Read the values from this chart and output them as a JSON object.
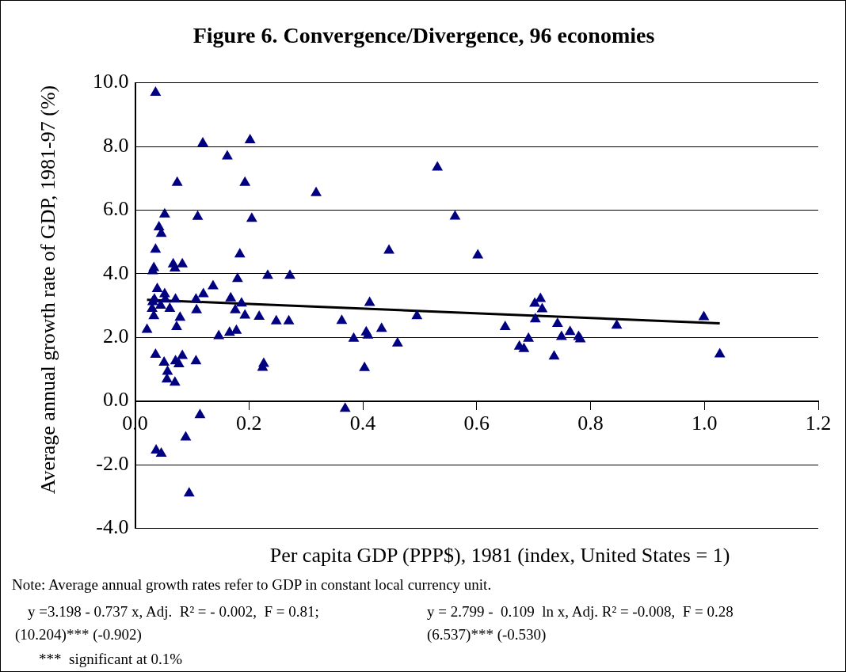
{
  "chart_data": {
    "type": "scatter",
    "title": "Figure 6. Convergence/Divergence, 96 economies",
    "xlabel": "Per capita GDP (PPP$), 1981 (index, United States = 1)",
    "ylabel": "Average annual growth rate of GDP, 1981-97 (%)",
    "xlim": [
      0,
      1.2
    ],
    "xticks": [
      {
        "value": 0,
        "label": "0.0"
      },
      {
        "value": 0.2,
        "label": "0.2"
      },
      {
        "value": 0.4,
        "label": "0.4"
      },
      {
        "value": 0.6,
        "label": "0.6"
      },
      {
        "value": 0.8,
        "label": "0.8"
      },
      {
        "value": 1,
        "label": "1.0"
      },
      {
        "value": 1.2,
        "label": "1.2"
      }
    ],
    "ylim": [
      -4,
      10
    ],
    "yticks": [
      {
        "value": -4,
        "label": "-4.0"
      },
      {
        "value": -2,
        "label": "-2.0"
      },
      {
        "value": 0,
        "label": "0.0"
      },
      {
        "value": 2,
        "label": "2.0"
      },
      {
        "value": 4,
        "label": "4.0"
      },
      {
        "value": 6,
        "label": "6.0"
      },
      {
        "value": 8,
        "label": "8.0"
      },
      {
        "value": 10,
        "label": "10.0"
      }
    ],
    "grid": "y",
    "marker": "triangle",
    "series": [
      {
        "color": "#000080",
        "x": [
          0.036,
          0.119,
          0.202,
          0.162,
          0.074,
          0.193,
          0.052,
          0.11,
          0.205,
          0.042,
          0.046,
          0.036,
          0.184,
          0.033,
          0.031,
          0.067,
          0.07,
          0.083,
          0.18,
          0.233,
          0.272,
          0.039,
          0.052,
          0.034,
          0.031,
          0.071,
          0.053,
          0.045,
          0.137,
          0.12,
          0.107,
          0.108,
          0.168,
          0.187,
          0.176,
          0.193,
          0.218,
          0.248,
          0.27,
          0.03,
          0.061,
          0.033,
          0.079,
          0.073,
          0.021,
          0.147,
          0.166,
          0.178,
          0.036,
          0.051,
          0.071,
          0.083,
          0.077,
          0.107,
          0.057,
          0.056,
          0.07,
          0.224,
          0.226,
          0.114,
          0.089,
          0.037,
          0.046,
          0.095,
          0.531,
          0.562,
          0.446,
          0.602,
          0.318,
          0.412,
          0.363,
          0.384,
          0.406,
          0.409,
          0.433,
          0.461,
          0.403,
          0.495,
          0.369,
          0.65,
          0.675,
          0.683,
          0.691,
          0.703,
          0.702,
          0.712,
          0.715,
          0.736,
          0.742,
          0.749,
          0.764,
          0.779,
          0.782,
          0.846,
          0.999,
          1.027
        ],
        "values": [
          9.69,
          8.1,
          8.2,
          7.69,
          6.86,
          6.86,
          5.87,
          5.79,
          5.73,
          5.46,
          5.26,
          4.76,
          4.61,
          4.18,
          4.08,
          4.3,
          4.17,
          4.3,
          3.84,
          3.94,
          3.94,
          3.52,
          3.36,
          3.19,
          3.11,
          3.19,
          3.19,
          3.0,
          3.61,
          3.36,
          3.19,
          2.86,
          3.23,
          3.07,
          2.86,
          2.69,
          2.65,
          2.51,
          2.51,
          2.9,
          2.9,
          2.67,
          2.62,
          2.33,
          2.24,
          2.04,
          2.15,
          2.21,
          1.46,
          1.21,
          1.25,
          1.42,
          1.16,
          1.25,
          0.92,
          0.68,
          0.58,
          1.05,
          1.17,
          -0.44,
          -1.14,
          -1.55,
          -1.65,
          -2.9,
          7.34,
          5.8,
          4.73,
          4.58,
          6.54,
          3.09,
          2.52,
          1.96,
          2.16,
          2.06,
          2.27,
          1.81,
          1.04,
          2.67,
          -0.24,
          2.33,
          1.71,
          1.64,
          1.96,
          2.57,
          3.06,
          3.21,
          2.89,
          1.4,
          2.43,
          2.02,
          2.17,
          2.02,
          1.94,
          2.37,
          2.64,
          1.47
        ]
      },
      {
        "type": "line",
        "color": "#000000",
        "marker": "none",
        "line_style": "solid",
        "x": [
          0.021,
          1.027
        ],
        "values": [
          3.18,
          2.44
        ]
      }
    ],
    "annotations": [
      "Note: Average annual growth rates refer to GDP in constant local currency unit.",
      "y =3.198 - 0.737 x, Adj.  R² = - 0.002,  F = 0.81;",
      "(10.204)*** (-0.902)",
      "y = 2.799 -  0.109  ln x, Adj. R² = -0.008,  F = 0.28",
      "(6.537)*** (-0.530)",
      "***  significant at 0.1%"
    ]
  }
}
